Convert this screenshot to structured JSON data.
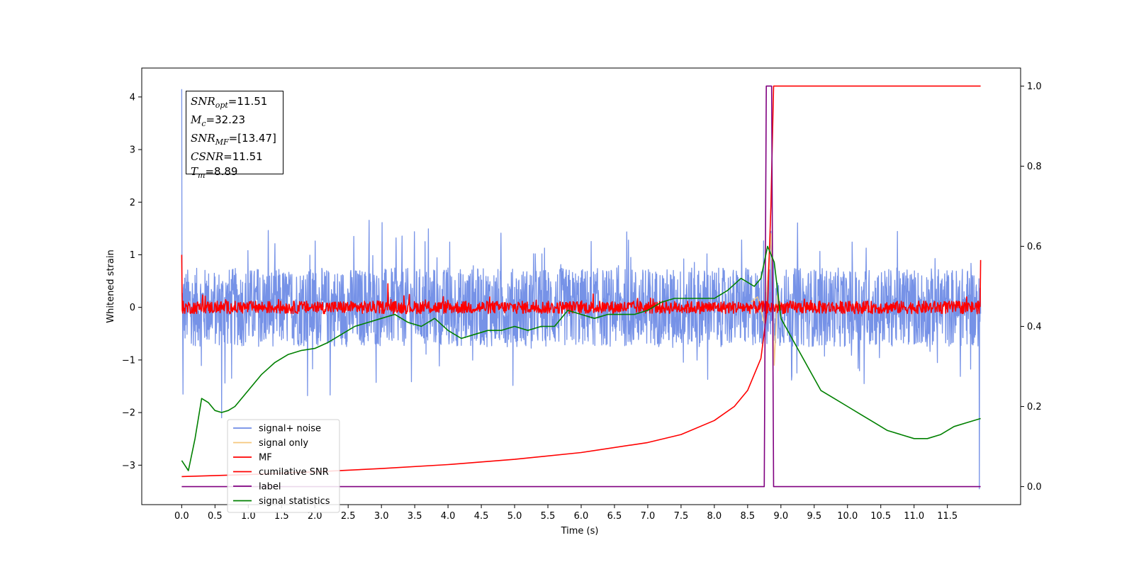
{
  "chart_data": {
    "type": "line",
    "xlabel": "Time (s)",
    "ylabel": "Whitened strain",
    "xlim": [
      -0.6,
      12.6
    ],
    "ylim": [
      -3.75,
      4.55
    ],
    "y2lim": [
      -0.045,
      1.045
    ],
    "x_ticks": [
      "0.0",
      "0.5",
      "1.0",
      "1.5",
      "2.0",
      "2.5",
      "3.0",
      "3.5",
      "4.0",
      "4.5",
      "5.0",
      "5.5",
      "6.0",
      "6.5",
      "7.0",
      "7.5",
      "8.0",
      "8.5",
      "9.0",
      "9.5",
      "10.0",
      "10.5",
      "11.0",
      "11.5"
    ],
    "y_ticks": [
      "4",
      "3",
      "2",
      "1",
      "0",
      "−1",
      "−2",
      "−3"
    ],
    "y2_ticks": [
      "1.0",
      "0.8",
      "0.6",
      "0.4",
      "0.2",
      "0.0"
    ],
    "legend_position": "lower-left",
    "legend": [
      {
        "label": "signal+ noise",
        "color": "#6f8ce6"
      },
      {
        "label": "signal only",
        "color": "#f5c77e"
      },
      {
        "label": "MF",
        "color": "#ff0000"
      },
      {
        "label": "cumilative SNR",
        "color": "#ff0000"
      },
      {
        "label": "label",
        "color": "#800080"
      },
      {
        "label": "signal statistics",
        "color": "#008000"
      }
    ],
    "series": [
      {
        "name": "signal+ noise",
        "axis": "left",
        "color": "#6f8ce6",
        "note_style": "noise",
        "x_range": [
          0.0,
          12.0
        ],
        "envelope": [
          -1.0,
          1.2
        ],
        "spikes": [
          [
            0.0,
            4.15
          ],
          [
            0.02,
            -1.65
          ],
          [
            0.6,
            -2.1
          ],
          [
            8.85,
            1.45
          ],
          [
            11.98,
            -3.45
          ]
        ]
      },
      {
        "name": "signal only",
        "axis": "left",
        "color": "#f5c77e",
        "x": [
          8.55,
          8.65,
          8.75,
          8.8,
          8.85,
          8.9,
          8.95
        ],
        "y": [
          0.1,
          0.2,
          -0.3,
          0.6,
          1.4,
          -1.1,
          0.3
        ]
      },
      {
        "name": "MF",
        "axis": "left",
        "color": "#ff0000",
        "x_range": [
          0.0,
          12.0
        ],
        "level": 0.0,
        "amp": 0.12,
        "bumps": [
          [
            0.0,
            1.0
          ],
          [
            3.1,
            0.45
          ],
          [
            12.0,
            0.9
          ]
        ]
      },
      {
        "name": "cumilative SNR",
        "axis": "right",
        "color": "#ff0000",
        "x": [
          0.0,
          1.0,
          2.0,
          3.0,
          4.0,
          5.0,
          6.0,
          7.0,
          7.5,
          8.0,
          8.3,
          8.5,
          8.7,
          8.8,
          8.85,
          8.89,
          9.0,
          10.0,
          11.0,
          12.0
        ],
        "y": [
          0.025,
          0.03,
          0.037,
          0.045,
          0.055,
          0.068,
          0.085,
          0.11,
          0.13,
          0.165,
          0.2,
          0.24,
          0.32,
          0.45,
          0.7,
          1.0,
          1.0,
          1.0,
          1.0,
          1.0
        ]
      },
      {
        "name": "label",
        "axis": "right",
        "color": "#800080",
        "x": [
          0.0,
          8.75,
          8.78,
          8.86,
          8.89,
          12.0
        ],
        "y": [
          0.0,
          0.0,
          1.0,
          1.0,
          0.0,
          0.0
        ]
      },
      {
        "name": "signal statistics",
        "axis": "right",
        "color": "#008000",
        "x": [
          0.0,
          0.1,
          0.2,
          0.3,
          0.4,
          0.5,
          0.6,
          0.7,
          0.8,
          1.0,
          1.2,
          1.4,
          1.6,
          1.8,
          2.0,
          2.2,
          2.4,
          2.6,
          2.8,
          3.0,
          3.2,
          3.4,
          3.6,
          3.8,
          4.0,
          4.2,
          4.4,
          4.6,
          4.8,
          5.0,
          5.2,
          5.4,
          5.6,
          5.8,
          6.0,
          6.2,
          6.4,
          6.6,
          6.8,
          7.0,
          7.2,
          7.4,
          7.6,
          7.8,
          8.0,
          8.2,
          8.4,
          8.6,
          8.7,
          8.8,
          8.9,
          9.0,
          9.2,
          9.4,
          9.6,
          9.8,
          10.0,
          10.2,
          10.4,
          10.6,
          10.8,
          11.0,
          11.2,
          11.4,
          11.6,
          11.8,
          12.0
        ],
        "y": [
          0.065,
          0.04,
          0.12,
          0.22,
          0.21,
          0.19,
          0.185,
          0.19,
          0.2,
          0.24,
          0.28,
          0.31,
          0.33,
          0.34,
          0.345,
          0.36,
          0.38,
          0.4,
          0.41,
          0.42,
          0.43,
          0.41,
          0.4,
          0.42,
          0.39,
          0.37,
          0.38,
          0.39,
          0.39,
          0.4,
          0.39,
          0.4,
          0.4,
          0.44,
          0.43,
          0.42,
          0.43,
          0.43,
          0.43,
          0.44,
          0.46,
          0.47,
          0.47,
          0.47,
          0.47,
          0.49,
          0.52,
          0.5,
          0.52,
          0.6,
          0.56,
          0.42,
          0.36,
          0.3,
          0.24,
          0.22,
          0.2,
          0.18,
          0.16,
          0.14,
          0.13,
          0.12,
          0.12,
          0.13,
          0.15,
          0.16,
          0.17
        ]
      }
    ]
  },
  "annotation": {
    "lines": [
      {
        "main": "SNR",
        "sub": "opt",
        "value": "=11.51"
      },
      {
        "main": "M",
        "sub": "c",
        "value": "=32.23"
      },
      {
        "main": "SNR",
        "sub": "MF",
        "value": "=[13.47]"
      },
      {
        "main": "CSNR",
        "sub": "",
        "value": "=11.51"
      },
      {
        "main": "T",
        "sub": "m",
        "value": "=8.89"
      }
    ]
  }
}
